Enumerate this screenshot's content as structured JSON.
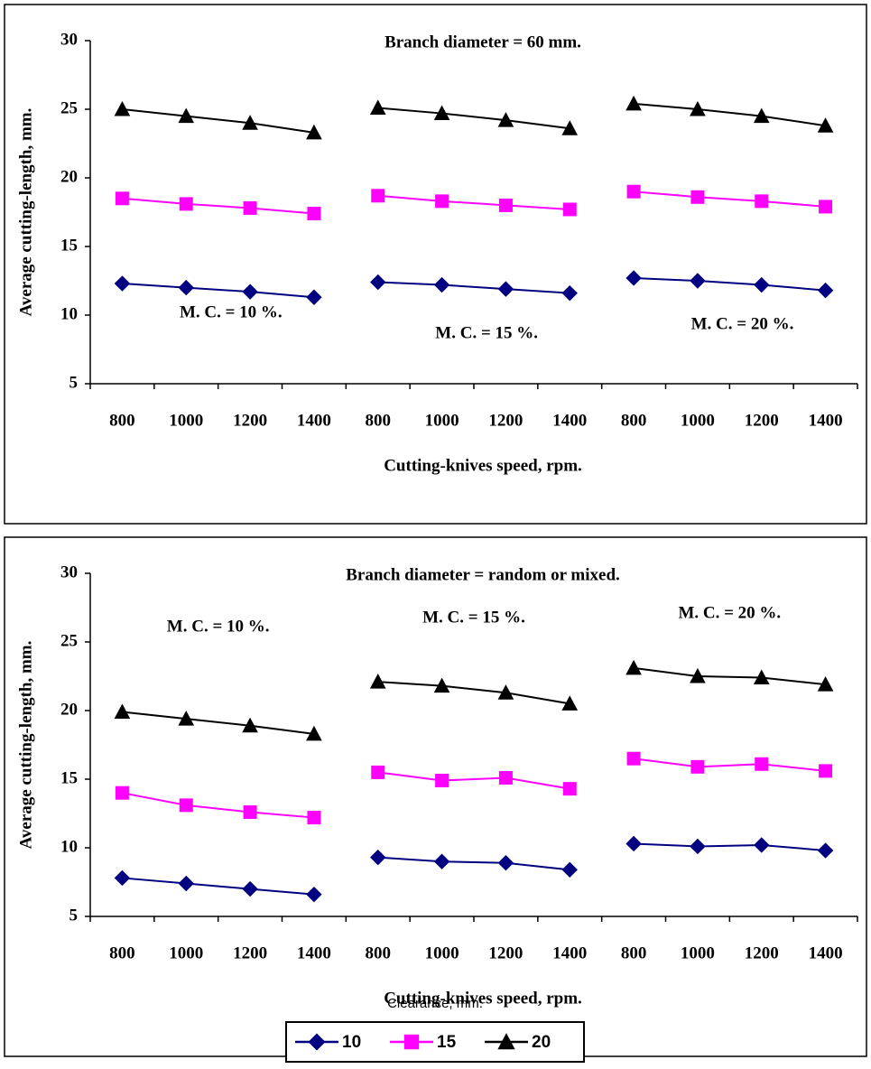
{
  "chart_data": [
    {
      "type": "line",
      "title": "Branch diameter = 60 mm.",
      "ylabel": "Average cutting-length, mm.",
      "xlabel": "Cutting-knives speed, rpm.",
      "ylim": [
        5,
        30
      ],
      "yticks": [
        5,
        10,
        15,
        20,
        25,
        30
      ],
      "groups": [
        {
          "annotation": "M. C. = 10 %.",
          "categories": [
            "800",
            "1000",
            "1200",
            "1400"
          ],
          "series": [
            {
              "values": [
                12.3,
                12.0,
                11.7,
                11.3
              ]
            },
            {
              "values": [
                18.5,
                18.1,
                17.8,
                17.4
              ]
            },
            {
              "values": [
                25.0,
                24.5,
                24.0,
                23.3
              ]
            }
          ]
        },
        {
          "annotation": "M. C. = 15 %.",
          "categories": [
            "800",
            "1000",
            "1200",
            "1400"
          ],
          "series": [
            {
              "values": [
                12.4,
                12.2,
                11.9,
                11.6
              ]
            },
            {
              "values": [
                18.7,
                18.3,
                18.0,
                17.7
              ]
            },
            {
              "values": [
                25.1,
                24.7,
                24.2,
                23.6
              ]
            }
          ]
        },
        {
          "annotation": "M. C. = 20 %.",
          "categories": [
            "800",
            "1000",
            "1200",
            "1400"
          ],
          "series": [
            {
              "values": [
                12.7,
                12.5,
                12.2,
                11.8
              ]
            },
            {
              "values": [
                19.0,
                18.6,
                18.3,
                17.9
              ]
            },
            {
              "values": [
                25.4,
                25.0,
                24.5,
                23.8
              ]
            }
          ]
        }
      ]
    },
    {
      "type": "line",
      "title": "Branch diameter = random or mixed.",
      "ylabel": "Average cutting-length, mm.",
      "xlabel": "Cutting-knives speed, rpm.",
      "ylim": [
        5,
        30
      ],
      "yticks": [
        5,
        10,
        15,
        20,
        25,
        30
      ],
      "groups": [
        {
          "annotation": "M. C. = 10 %.",
          "categories": [
            "800",
            "1000",
            "1200",
            "1400"
          ],
          "series": [
            {
              "values": [
                7.8,
                7.4,
                7.0,
                6.6
              ]
            },
            {
              "values": [
                14.0,
                13.1,
                12.6,
                12.2
              ]
            },
            {
              "values": [
                19.9,
                19.4,
                18.9,
                18.3
              ]
            }
          ]
        },
        {
          "annotation": "M. C. = 15 %.",
          "categories": [
            "800",
            "1000",
            "1200",
            "1400"
          ],
          "series": [
            {
              "values": [
                9.3,
                9.0,
                8.9,
                8.4
              ]
            },
            {
              "values": [
                15.5,
                14.9,
                15.1,
                14.3
              ]
            },
            {
              "values": [
                22.1,
                21.8,
                21.3,
                20.5
              ]
            }
          ]
        },
        {
          "annotation": "M. C. = 20 %.",
          "categories": [
            "800",
            "1000",
            "1200",
            "1400"
          ],
          "series": [
            {
              "values": [
                10.3,
                10.1,
                10.2,
                9.8
              ]
            },
            {
              "values": [
                16.5,
                15.9,
                16.1,
                15.6
              ]
            },
            {
              "values": [
                23.1,
                22.5,
                22.4,
                21.9
              ]
            }
          ]
        }
      ]
    }
  ],
  "legend": {
    "title": "Clearance, mm.",
    "series": [
      {
        "name": "10",
        "color": "#000080",
        "marker": "diamond"
      },
      {
        "name": "15",
        "color": "#ff00ff",
        "marker": "square"
      },
      {
        "name": "20",
        "color": "#000000",
        "marker": "triangle"
      }
    ]
  }
}
